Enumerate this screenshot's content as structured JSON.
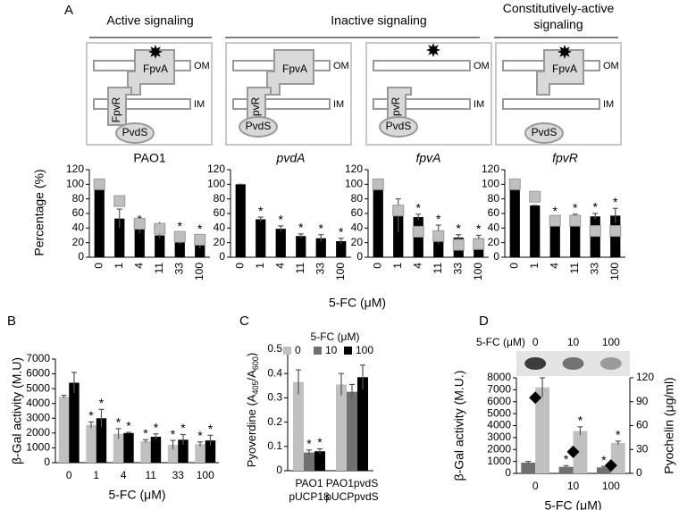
{
  "panel_labels": [
    "A",
    "B",
    "C",
    "D"
  ],
  "diagram": {
    "groups": [
      "Active signaling",
      "Inactive signaling",
      "Constitutively-active signaling"
    ],
    "labels": {
      "fpva": "FpvA",
      "fpvr": "FpvR",
      "pvds": "PvdS",
      "om": "OM",
      "im": "IM"
    }
  },
  "panel_a": {
    "ylabel": "Percentage (%)",
    "xlabel": "5-FC (μM)"
  },
  "chart_data": [
    {
      "type": "bar",
      "title": "PAO1",
      "categories": [
        "0",
        "1",
        "4",
        "11",
        "33",
        "100"
      ],
      "series": [
        {
          "color": "#000000",
          "style": "bar",
          "values": [
            93,
            53,
            38,
            30,
            26,
            21
          ],
          "errors": [
            0,
            13,
            5,
            4,
            8,
            9
          ],
          "significant": [
            false,
            false,
            true,
            true,
            true,
            true
          ]
        },
        {
          "color": "#bfbfbf",
          "style": "square",
          "values": [
            100,
            77,
            46,
            39,
            28,
            24
          ]
        }
      ],
      "star": "*",
      "ylim": [
        0,
        120
      ],
      "yticks": [
        0,
        20,
        40,
        60,
        80,
        100,
        120
      ]
    },
    {
      "type": "bar",
      "title": "pvdA",
      "title_style": "italic",
      "categories": [
        "0",
        "1",
        "4",
        "11",
        "33",
        "100"
      ],
      "series": [
        {
          "color": "#000000",
          "style": "bar",
          "values": [
            100,
            52,
            39,
            29,
            26,
            22
          ],
          "errors": [
            0,
            3,
            4,
            3,
            5,
            4
          ],
          "significant": [
            false,
            true,
            true,
            true,
            true,
            true
          ]
        }
      ],
      "star": "*",
      "ylim": [
        0,
        120
      ],
      "yticks": [
        0,
        20,
        40,
        60,
        80,
        100,
        120
      ]
    },
    {
      "type": "bar",
      "title": "fpvA",
      "title_style": "italic",
      "categories": [
        "0",
        "1",
        "4",
        "11",
        "33",
        "100"
      ],
      "series": [
        {
          "color": "#000000",
          "style": "bar",
          "values": [
            93,
            57,
            55,
            31,
            27,
            26
          ],
          "errors": [
            0,
            23,
            4,
            13,
            4,
            4
          ],
          "significant": [
            false,
            false,
            true,
            true,
            true,
            true
          ]
        },
        {
          "color": "#bfbfbf",
          "style": "square",
          "values": [
            100,
            64,
            35,
            29,
            17,
            18
          ]
        }
      ],
      "star": "*",
      "ylim": [
        0,
        120
      ],
      "yticks": [
        0,
        20,
        40,
        60,
        80,
        100,
        120
      ]
    },
    {
      "type": "bar",
      "title": "fpvR",
      "title_style": "italic",
      "categories": [
        "0",
        "1",
        "4",
        "11",
        "33",
        "100"
      ],
      "series": [
        {
          "color": "#000000",
          "style": "bar",
          "values": [
            93,
            71,
            52,
            52,
            56,
            57
          ],
          "errors": [
            0,
            0,
            3,
            7,
            4,
            10
          ],
          "significant": [
            false,
            false,
            true,
            true,
            true,
            true
          ]
        },
        {
          "color": "#bfbfbf",
          "style": "square",
          "values": [
            100,
            83,
            50,
            50,
            36,
            36
          ]
        }
      ],
      "star": "*",
      "ylim": [
        0,
        120
      ],
      "yticks": [
        0,
        20,
        40,
        60,
        80,
        100,
        120
      ]
    },
    {
      "type": "bar",
      "categories": [
        "0",
        "1",
        "4",
        "11",
        "33",
        "100"
      ],
      "series": [
        {
          "color": "#c0c0c0",
          "style": "bar",
          "values": [
            4450,
            2550,
            1950,
            1450,
            1200,
            1250
          ],
          "errors": [
            100,
            200,
            350,
            100,
            300,
            150
          ],
          "significant": [
            false,
            true,
            true,
            true,
            true,
            true
          ]
        },
        {
          "color": "#000000",
          "style": "bar",
          "values": [
            5400,
            3000,
            2000,
            1750,
            1550,
            1500
          ],
          "errors": [
            700,
            600,
            50,
            200,
            350,
            350
          ],
          "significant": [
            false,
            true,
            true,
            true,
            true,
            true
          ]
        }
      ],
      "star": "*",
      "ylim": [
        0,
        7000
      ],
      "yticks": [
        0,
        1000,
        2000,
        3000,
        4000,
        5000,
        6000,
        7000
      ],
      "ylabel": "β-Gal activity (M.U)",
      "xlabel": "5-FC (μM)"
    },
    {
      "type": "bar",
      "categories": [
        [
          "PAO1",
          "pUCP18"
        ],
        [
          "PAO1pvdS",
          "pUCPpvdS"
        ]
      ],
      "legend_title": "5-FC (μM)",
      "series": [
        {
          "name": "0",
          "color": "#c0c0c0",
          "style": "bar",
          "values": [
            0.365,
            0.355
          ],
          "errors": [
            0.05,
            0.045
          ],
          "significant": [
            false,
            false
          ]
        },
        {
          "name": "10",
          "color": "#707070",
          "style": "bar",
          "values": [
            0.075,
            0.325
          ],
          "errors": [
            0.01,
            0.03
          ],
          "significant": [
            true,
            false
          ]
        },
        {
          "name": "100",
          "color": "#000000",
          "style": "bar",
          "values": [
            0.08,
            0.385
          ],
          "errors": [
            0.01,
            0.05
          ],
          "significant": [
            true,
            false
          ]
        }
      ],
      "star": "*",
      "ylim": [
        0,
        0.5
      ],
      "yticks": [
        0,
        0.1,
        0.2,
        0.3,
        0.4,
        0.5
      ],
      "ylabel_parts": [
        "Pyoverdine (A",
        "405",
        "/A",
        "600",
        ")"
      ]
    },
    {
      "type": "bar",
      "categories": [
        "0",
        "10",
        "100"
      ],
      "blot_label": "5-FC (μM)",
      "blot_lanes": [
        "0",
        "10",
        "100"
      ],
      "series": [
        {
          "color": "#707070",
          "style": "bar",
          "values": [
            900,
            550,
            500
          ],
          "errors": [
            100,
            100,
            80
          ],
          "significant": [
            false,
            true,
            true
          ]
        },
        {
          "color": "#c0c0c0",
          "style": "bar",
          "values": [
            7200,
            3550,
            2550
          ],
          "errors": [
            800,
            350,
            150
          ],
          "significant": [
            false,
            true,
            true
          ]
        },
        {
          "color": "#000000",
          "style": "diamond",
          "axis": "y2",
          "values": [
            95,
            27,
            10
          ]
        }
      ],
      "star": "*",
      "ylim": [
        0,
        8000
      ],
      "yticks": [
        0,
        1000,
        2000,
        3000,
        4000,
        5000,
        6000,
        7000,
        8000
      ],
      "y2lim": [
        0,
        120
      ],
      "y2ticks": [
        0,
        30,
        60,
        90,
        120
      ],
      "ylabel": "β-Gal activity (M.U.)",
      "y2label": "Pyochelin (μg/ml)",
      "xlabel": "5-FC (μM)"
    }
  ]
}
